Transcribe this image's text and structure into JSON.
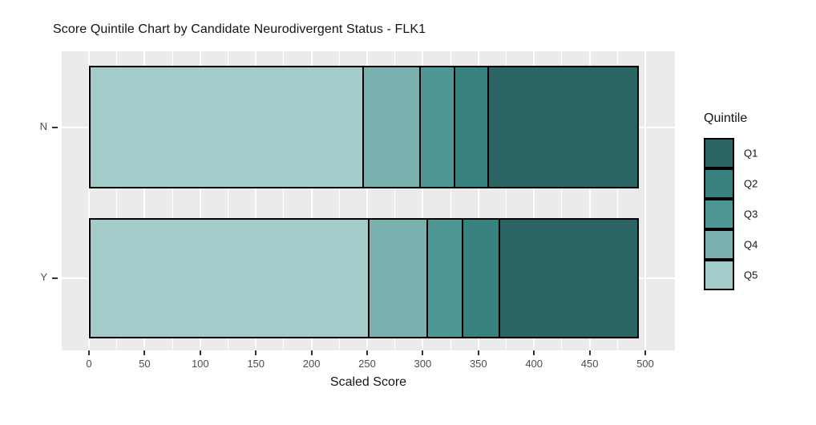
{
  "title": "Score Quintile Chart by Candidate Neurodivergent Status - FLK1",
  "x_axis_title": "Scaled Score",
  "y_axis_title": "",
  "legend": {
    "title": "Quintile",
    "entries": [
      "Q1",
      "Q2",
      "Q3",
      "Q4",
      "Q5"
    ]
  },
  "colors": {
    "panel_background": "#ebebeb",
    "gridline": "#ffffff",
    "bar_outline": "#000000",
    "tick_mark": "#333333",
    "tick_label_text": "#4d4d4d",
    "title_text": "#141414",
    "quintile_palette": {
      "Q1": "#2b6665",
      "Q2": "#37817f",
      "Q3": "#4f9794",
      "Q4": "#7ab1ae",
      "Q5": "#a3cbca"
    }
  },
  "chart_data": {
    "type": "bar",
    "orientation": "horizontal",
    "stacked": true,
    "title": "Score Quintile Chart by Candidate Neurodivergent Status - FLK1",
    "xlabel": "Scaled Score",
    "ylabel": "",
    "xlim": [
      0,
      500
    ],
    "x_ticks": [
      0,
      50,
      100,
      150,
      200,
      250,
      300,
      350,
      400,
      450,
      500
    ],
    "x_minor_ticks": [
      25,
      75,
      125,
      175,
      225,
      275,
      325,
      375,
      425,
      475
    ],
    "grid": true,
    "legend_position": "right",
    "legend_title": "Quintile",
    "categories": [
      "N",
      "Y"
    ],
    "quintiles": [
      {
        "name": "Q1",
        "color": "#2b6665"
      },
      {
        "name": "Q2",
        "color": "#37817f"
      },
      {
        "name": "Q3",
        "color": "#4f9794"
      },
      {
        "name": "Q4",
        "color": "#7ab1ae"
      },
      {
        "name": "Q5",
        "color": "#a3cbca"
      }
    ],
    "series": [
      {
        "category": "N",
        "segments": [
          {
            "quintile": "Q5",
            "from": 0,
            "to": 247
          },
          {
            "quintile": "Q4",
            "from": 247,
            "to": 300
          },
          {
            "quintile": "Q3",
            "from": 300,
            "to": 332
          },
          {
            "quintile": "Q2",
            "from": 332,
            "to": 364
          },
          {
            "quintile": "Q1",
            "from": 364,
            "to": 500
          }
        ]
      },
      {
        "category": "Y",
        "segments": [
          {
            "quintile": "Q5",
            "from": 0,
            "to": 252
          },
          {
            "quintile": "Q4",
            "from": 252,
            "to": 306
          },
          {
            "quintile": "Q3",
            "from": 306,
            "to": 339
          },
          {
            "quintile": "Q2",
            "from": 339,
            "to": 374
          },
          {
            "quintile": "Q1",
            "from": 374,
            "to": 500
          }
        ]
      }
    ]
  }
}
